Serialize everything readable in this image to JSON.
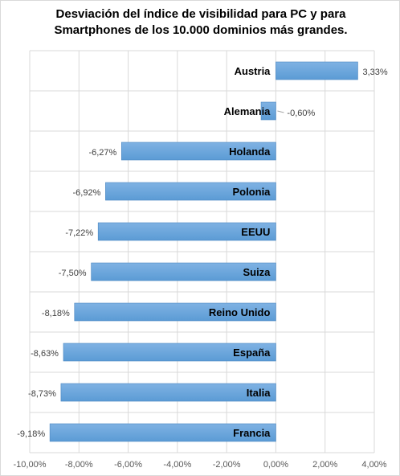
{
  "chart_data": {
    "type": "bar",
    "orientation": "horizontal",
    "title": "Desviación del índice de visibilidad para PC y para Smartphones de los 10.000 dominios más grandes.",
    "categories": [
      "Austria",
      "Alemania",
      "Holanda",
      "Polonia",
      "EEUU",
      "Suiza",
      "Reino Unido",
      "España",
      "Italia",
      "Francia"
    ],
    "values": [
      3.33,
      -0.6,
      -6.27,
      -6.92,
      -7.22,
      -7.5,
      -8.18,
      -8.63,
      -8.73,
      -9.18
    ],
    "data_labels": [
      "3,33%",
      "-0,60%",
      "-6,27%",
      "-6,92%",
      "-7,22%",
      "-7,50%",
      "-8,18%",
      "-8,63%",
      "-8,73%",
      "-9,18%"
    ],
    "xlim": [
      -10,
      4
    ],
    "xticks": [
      -10,
      -8,
      -6,
      -4,
      -2,
      0,
      2,
      4
    ],
    "xtick_labels": [
      "-10,00%",
      "-8,00%",
      "-6,00%",
      "-4,00%",
      "-2,00%",
      "0,00%",
      "2,00%",
      "4,00%"
    ],
    "xlabel": "",
    "ylabel": "",
    "grid": "vertical",
    "legend": "none",
    "colors": {
      "bar_fill": "#5b9bd5",
      "bar_fill_top": "#7fb2e3",
      "bar_stroke": "#4a86c0",
      "grid": "#d9d9d9"
    }
  }
}
